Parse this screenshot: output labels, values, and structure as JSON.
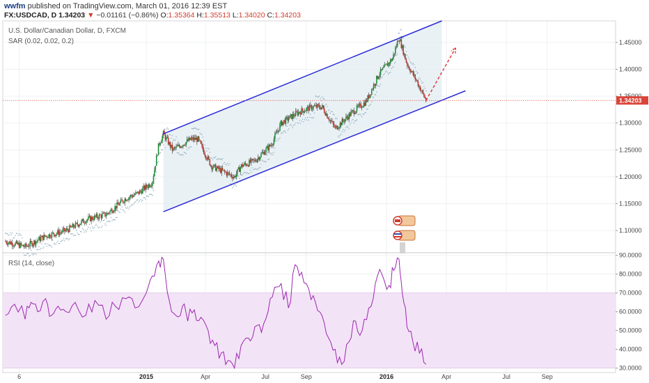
{
  "header": {
    "user": "wwfm",
    "published_text": "published on TradingView.com, March 01, 2016 12:39 EST",
    "symbol": "FX:USDCAD, D",
    "last": "1.34203",
    "change": "−0.01161 (−0.86%)",
    "open_label": "O:",
    "open": "1.35364",
    "high_label": "H:",
    "high": "1.35513",
    "low_label": "L:",
    "low": "1.34020",
    "close_label": "C:",
    "close": "1.34203"
  },
  "colors": {
    "down": "#d23a2c",
    "channel": "#2b2bd6",
    "channel_fill": "#e3edf2",
    "rsi_line": "#9b27af",
    "rsi_band": "#f3e3f7",
    "sar": "#8aa8b8",
    "arrow": "#e23b3b",
    "price_tag": "#d9453a"
  },
  "chart_data": [
    {
      "type": "candlestick",
      "title": "U.S. Dollar/Canadian Dollar, D, FXCM",
      "indicator": "SAR (0.02, 0.02, 0.2)",
      "ylim": [
        1.06,
        1.49
      ],
      "yticks": [
        1.1,
        1.15,
        1.2,
        1.25,
        1.3,
        1.35,
        1.4,
        1.45
      ],
      "ytick_labels": [
        "1.10000",
        "1.15000",
        "1.20000",
        "1.25000",
        "1.30000",
        "1.35000",
        "1.40000",
        "1.45000"
      ],
      "last_price_label": "1.34203",
      "last_price": 1.34203,
      "x_labels": [
        "6",
        "2015",
        "Apr",
        "Jul",
        "Sep",
        "2016",
        "Apr",
        "Jul",
        "Sep"
      ],
      "price_path": [
        [
          "2014-06-01",
          1.08
        ],
        [
          "2014-07-01",
          1.07
        ],
        [
          "2014-08-01",
          1.09
        ],
        [
          "2014-09-01",
          1.1
        ],
        [
          "2014-10-01",
          1.12
        ],
        [
          "2014-11-01",
          1.13
        ],
        [
          "2014-12-01",
          1.16
        ],
        [
          "2014-12-20",
          1.17
        ],
        [
          "2015-01-10",
          1.19
        ],
        [
          "2015-01-20",
          1.26
        ],
        [
          "2015-01-27",
          1.28
        ],
        [
          "2015-02-10",
          1.25
        ],
        [
          "2015-03-10",
          1.27
        ],
        [
          "2015-03-20",
          1.27
        ],
        [
          "2015-04-10",
          1.22
        ],
        [
          "2015-05-15",
          1.2
        ],
        [
          "2015-05-25",
          1.22
        ],
        [
          "2015-06-15",
          1.23
        ],
        [
          "2015-07-10",
          1.26
        ],
        [
          "2015-07-25",
          1.3
        ],
        [
          "2015-08-20",
          1.32
        ],
        [
          "2015-09-10",
          1.33
        ],
        [
          "2015-09-25",
          1.33
        ],
        [
          "2015-10-15",
          1.29
        ],
        [
          "2015-11-10",
          1.32
        ],
        [
          "2015-12-01",
          1.34
        ],
        [
          "2015-12-20",
          1.39
        ],
        [
          "2016-01-10",
          1.42
        ],
        [
          "2016-01-20",
          1.46
        ],
        [
          "2016-02-01",
          1.41
        ],
        [
          "2016-02-15",
          1.38
        ],
        [
          "2016-03-01",
          1.342
        ]
      ],
      "channel": {
        "upper": [
          [
            "2015-01-27",
            1.28
          ],
          [
            "2016-03-25",
            1.49
          ]
        ],
        "lower": [
          [
            "2015-01-27",
            1.135
          ],
          [
            "2016-04-30",
            1.36
          ]
        ]
      },
      "projection_arrow": [
        [
          "2016-03-01",
          1.342
        ],
        [
          "2016-04-15",
          1.44
        ]
      ]
    },
    {
      "type": "line",
      "title": "RSI (14, close)",
      "ylim": [
        28,
        91
      ],
      "yticks": [
        30,
        40,
        50,
        60,
        70,
        80,
        90
      ],
      "ytick_labels": [
        "30.0000",
        "40.0000",
        "50.0000",
        "60.0000",
        "70.0000",
        "80.0000",
        "90.0000"
      ],
      "band": [
        30,
        70
      ],
      "series": [
        {
          "values": [
            [
              "2014-06-01",
              58
            ],
            [
              "2014-06-15",
              64
            ],
            [
              "2014-07-01",
              56
            ],
            [
              "2014-07-10",
              65
            ],
            [
              "2014-07-20",
              60
            ],
            [
              "2014-08-01",
              67
            ],
            [
              "2014-08-10",
              58
            ],
            [
              "2014-08-20",
              63
            ],
            [
              "2014-09-01",
              60
            ],
            [
              "2014-09-15",
              65
            ],
            [
              "2014-10-01",
              58
            ],
            [
              "2014-10-15",
              66
            ],
            [
              "2014-11-01",
              56
            ],
            [
              "2014-11-15",
              63
            ],
            [
              "2014-12-01",
              67
            ],
            [
              "2014-12-15",
              62
            ],
            [
              "2015-01-01",
              70
            ],
            [
              "2015-01-10",
              79
            ],
            [
              "2015-01-20",
              87
            ],
            [
              "2015-01-27",
              88
            ],
            [
              "2015-02-05",
              66
            ],
            [
              "2015-02-15",
              58
            ],
            [
              "2015-02-25",
              63
            ],
            [
              "2015-03-05",
              55
            ],
            [
              "2015-03-15",
              61
            ],
            [
              "2015-03-25",
              57
            ],
            [
              "2015-04-05",
              50
            ],
            [
              "2015-04-15",
              42
            ],
            [
              "2015-04-25",
              38
            ],
            [
              "2015-05-05",
              34
            ],
            [
              "2015-05-15",
              30
            ],
            [
              "2015-05-25",
              42
            ],
            [
              "2015-06-05",
              46
            ],
            [
              "2015-06-15",
              52
            ],
            [
              "2015-06-25",
              49
            ],
            [
              "2015-07-05",
              60
            ],
            [
              "2015-07-15",
              73
            ],
            [
              "2015-07-25",
              75
            ],
            [
              "2015-08-05",
              62
            ],
            [
              "2015-08-15",
              85
            ],
            [
              "2015-08-25",
              81
            ],
            [
              "2015-09-05",
              72
            ],
            [
              "2015-09-15",
              65
            ],
            [
              "2015-09-25",
              58
            ],
            [
              "2015-10-05",
              46
            ],
            [
              "2015-10-15",
              40
            ],
            [
              "2015-10-25",
              32
            ],
            [
              "2015-11-05",
              44
            ],
            [
              "2015-11-15",
              55
            ],
            [
              "2015-11-25",
              50
            ],
            [
              "2015-12-05",
              62
            ],
            [
              "2015-12-15",
              75
            ],
            [
              "2015-12-25",
              80
            ],
            [
              "2016-01-05",
              74
            ],
            [
              "2016-01-12",
              82
            ],
            [
              "2016-01-20",
              88
            ],
            [
              "2016-01-25",
              70
            ],
            [
              "2016-02-01",
              52
            ],
            [
              "2016-02-10",
              44
            ],
            [
              "2016-02-20",
              38
            ],
            [
              "2016-03-01",
              32
            ]
          ]
        }
      ]
    }
  ]
}
